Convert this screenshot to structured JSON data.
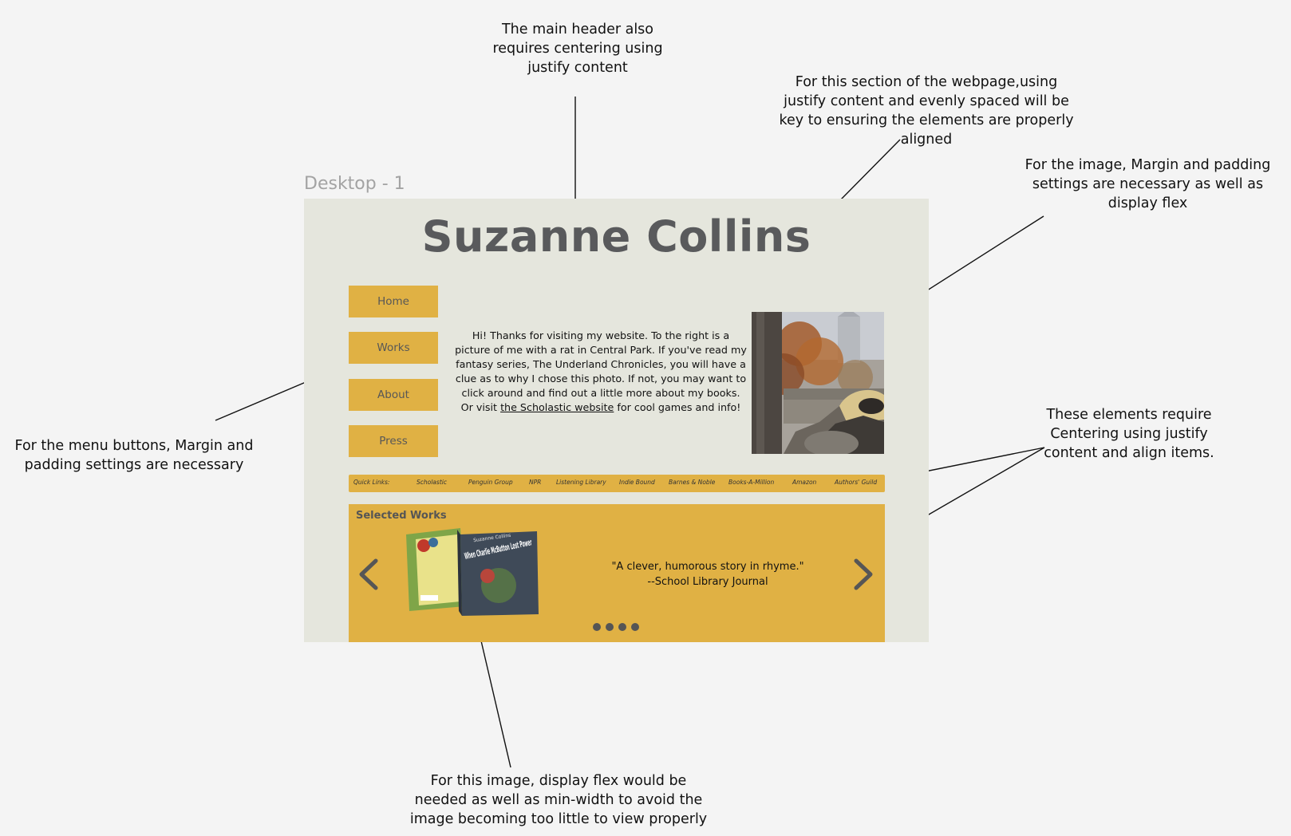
{
  "frame_label": "Desktop - 1",
  "site": {
    "title": "Suzanne Collins",
    "menu": [
      {
        "label": "Home"
      },
      {
        "label": "Works"
      },
      {
        "label": "About"
      },
      {
        "label": "Press"
      }
    ],
    "intro": {
      "text_before": "Hi! Thanks for visiting my website. To the right is a picture of me with a rat in Central Park. If you've read my fantasy series, The Underland Chronicles, you will have a clue as to why I chose this photo. If not, you may want to click around and find out a little more about my books. Or visit ",
      "link_text": "the Scholastic website",
      "text_after": " for cool games and info!"
    },
    "quick_links": {
      "label": "Quick Links:",
      "items": [
        "Scholastic",
        "Penguin Group",
        "NPR",
        "Listening Library",
        "Indie Bound",
        "Barnes & Noble",
        "Books-A-Million",
        "Amazon",
        "Authors' Guild"
      ]
    },
    "selected_works": {
      "title": "Selected Works",
      "quote_line1": "\"A clever, humorous story in rhyme.\"",
      "quote_line2": "--School Library Journal",
      "book_title": "When Charlie McButton Lost Power",
      "book_author_top": "Suzanne Collins",
      "dot_count": 4
    }
  },
  "annotations": {
    "header": "The main header also requires centering using justify content",
    "section": "For this section of the webpage,using justify content and evenly spaced will be key to ensuring the elements are properly aligned",
    "image": "For the image, Margin and padding settings are necessary as well as display flex",
    "menu": "For the menu buttons, Margin and padding settings are necessary",
    "centering": "These elements require Centering using justify content and align items.",
    "book_image": "For this image, display flex would be needed as well as min-width to avoid the image becoming too little to view properly"
  },
  "colors": {
    "page_bg": "#f4f4f4",
    "frame_bg": "#e5e6dd",
    "accent": "#e0b144",
    "heading": "#595a5c"
  }
}
